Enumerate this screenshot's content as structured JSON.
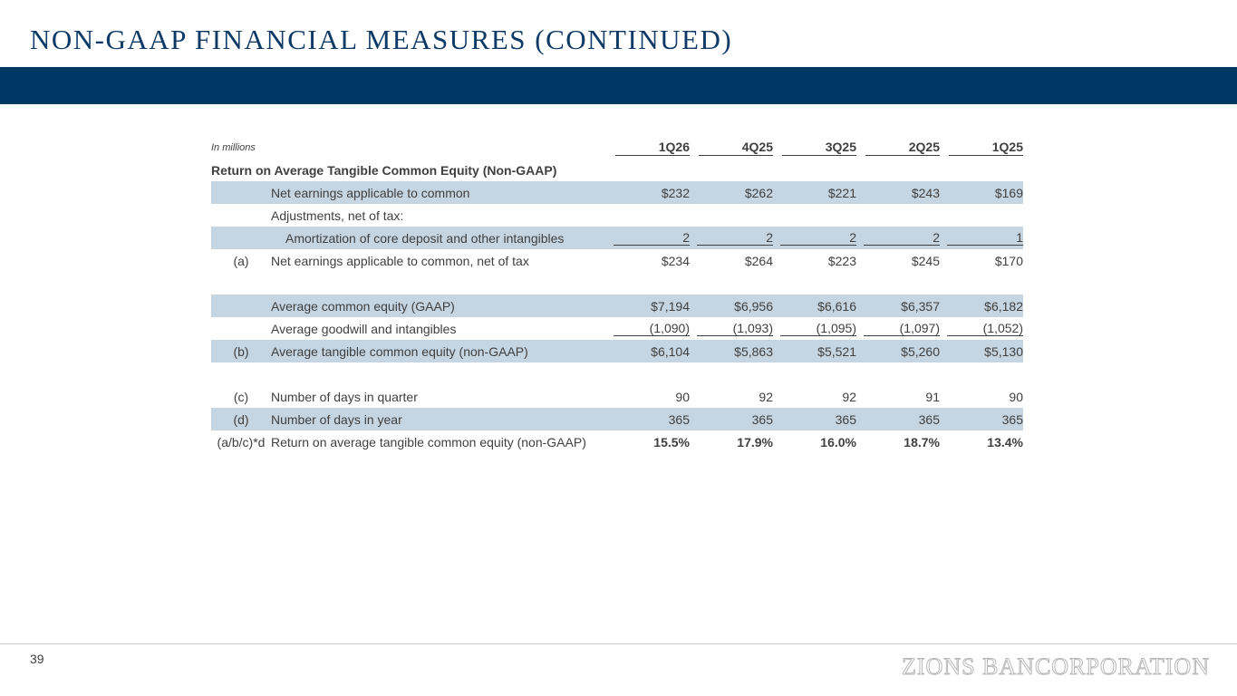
{
  "slide": {
    "title": "NON-GAAP FINANCIAL MEASURES (CONTINUED)",
    "page_number": "39",
    "logo_text": "ZIONS BANCORPORATION"
  },
  "table": {
    "units_label": "In millions",
    "columns": [
      "1Q26",
      "4Q25",
      "3Q25",
      "2Q25",
      "1Q25"
    ],
    "section_title": "Return on Average Tangible Common Equity (Non-GAAP)",
    "rows": [
      {
        "ref": "",
        "label": "Net earnings applicable to common",
        "values": [
          "$232",
          "$262",
          "$221",
          "$243",
          "$169"
        ]
      },
      {
        "ref": "",
        "label": "Adjustments, net of tax:",
        "values": [
          "",
          "",
          "",
          "",
          ""
        ]
      },
      {
        "ref": "",
        "label": "Amortization of core deposit and other intangibles",
        "values": [
          "2",
          "2",
          "2",
          "2",
          "1"
        ]
      },
      {
        "ref": "(a)",
        "label": "Net earnings applicable to common, net of tax",
        "values": [
          "$234",
          "$264",
          "$223",
          "$245",
          "$170"
        ]
      },
      {
        "ref": "",
        "label": "Average common equity (GAAP)",
        "values": [
          "$7,194",
          "$6,956",
          "$6,616",
          "$6,357",
          "$6,182"
        ]
      },
      {
        "ref": "",
        "label": "Average goodwill and intangibles",
        "values": [
          "(1,090)",
          "(1,093)",
          "(1,095)",
          "(1,097)",
          "(1,052)"
        ]
      },
      {
        "ref": "(b)",
        "label": "Average tangible common equity (non-GAAP)",
        "values": [
          "$6,104",
          "$5,863",
          "$5,521",
          "$5,260",
          "$5,130"
        ]
      },
      {
        "ref": "(c)",
        "label": "Number of days in quarter",
        "values": [
          "90",
          "92",
          "92",
          "91",
          "90"
        ]
      },
      {
        "ref": "(d)",
        "label": "Number of days in year",
        "values": [
          "365",
          "365",
          "365",
          "365",
          "365"
        ]
      },
      {
        "ref": "(a/b/c)*d",
        "label": "Return on average tangible common equity (non-GAAP)",
        "values": [
          "15.5%",
          "17.9%",
          "16.0%",
          "18.7%",
          "13.4%"
        ]
      }
    ]
  }
}
